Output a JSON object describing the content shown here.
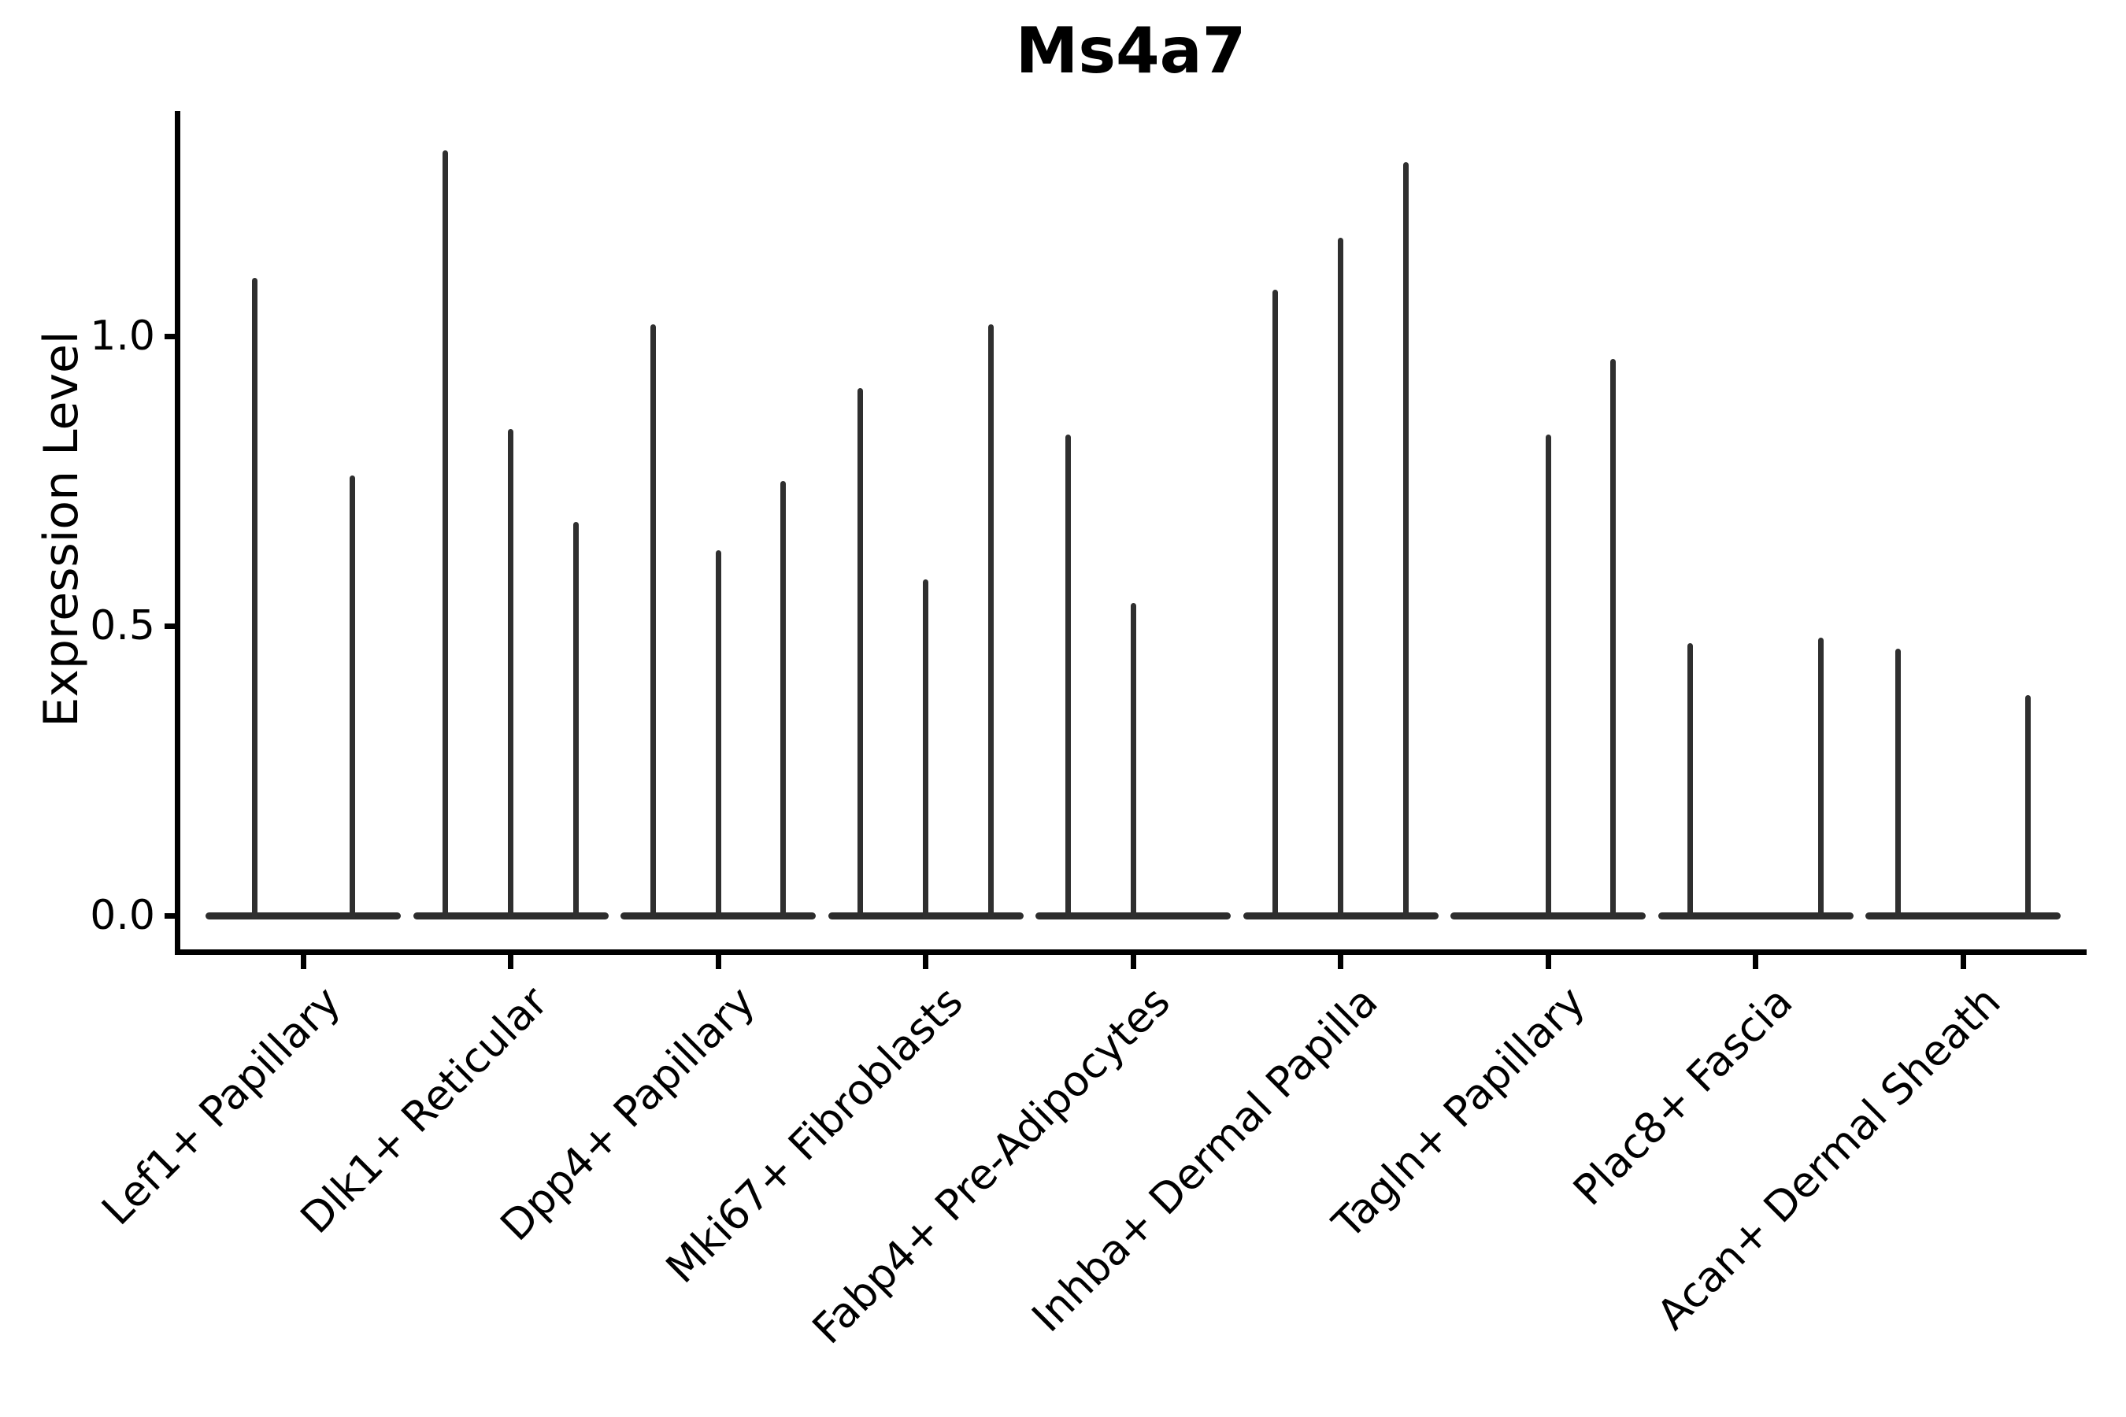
{
  "title": "Ms4a7",
  "y_axis": {
    "label": "Expression Level",
    "tick_labels": [
      "0.0",
      "0.5",
      "1.0"
    ]
  },
  "chart_data": {
    "type": "violin",
    "title": "Ms4a7",
    "xlabel": "",
    "ylabel": "Expression Level",
    "yticks": [
      0.0,
      0.5,
      1.0
    ],
    "ylim": [
      -0.06,
      1.39
    ],
    "grid": false,
    "legend_position": "none",
    "description": "Needle-thin violin plot of Ms4a7 expression; each category shows a flat zero-density baseline with thin spikes rising to the maximum expression of each sub-violin group.",
    "categories": [
      {
        "label": "Lef1+ Papillary",
        "groups": 2,
        "spikes": [
          {
            "slot": 0,
            "max": 1.1
          },
          {
            "slot": 1,
            "max": 0.76
          }
        ]
      },
      {
        "label": "Dlk1+ Reticular",
        "groups": 3,
        "spikes": [
          {
            "slot": 0,
            "max": 1.32
          },
          {
            "slot": 1,
            "max": 0.84
          },
          {
            "slot": 2,
            "max": 0.68
          }
        ]
      },
      {
        "label": "Dpp4+ Papillary",
        "groups": 3,
        "spikes": [
          {
            "slot": 0,
            "max": 1.02
          },
          {
            "slot": 1,
            "max": 0.63
          },
          {
            "slot": 2,
            "max": 0.75
          }
        ]
      },
      {
        "label": "Mki67+ Fibroblasts",
        "groups": 3,
        "spikes": [
          {
            "slot": 0,
            "max": 0.91
          },
          {
            "slot": 1,
            "max": 0.58
          },
          {
            "slot": 2,
            "max": 1.02
          }
        ]
      },
      {
        "label": "Fabp4+ Pre-Adipocytes",
        "groups": 3,
        "spikes": [
          {
            "slot": 0,
            "max": 0.83
          },
          {
            "slot": 1,
            "max": 0.54
          }
        ]
      },
      {
        "label": "Inhba+ Dermal Papilla",
        "groups": 3,
        "spikes": [
          {
            "slot": 0,
            "max": 1.08
          },
          {
            "slot": 1,
            "max": 1.17
          },
          {
            "slot": 2,
            "max": 1.3
          }
        ]
      },
      {
        "label": "Tagln+ Papillary",
        "groups": 3,
        "spikes": [
          {
            "slot": 1,
            "max": 0.83
          },
          {
            "slot": 2,
            "max": 0.96
          }
        ]
      },
      {
        "label": "Plac8+ Fascia",
        "groups": 3,
        "spikes": [
          {
            "slot": 0,
            "max": 0.47
          },
          {
            "slot": 2,
            "max": 0.48
          }
        ]
      },
      {
        "label": "Acan+ Dermal Sheath",
        "groups": 3,
        "spikes": [
          {
            "slot": 0,
            "max": 0.46
          },
          {
            "slot": 2,
            "max": 0.38
          }
        ]
      }
    ],
    "colors": {
      "violin": "#2d2d2d",
      "axis": "#000000",
      "background": "#ffffff"
    }
  }
}
